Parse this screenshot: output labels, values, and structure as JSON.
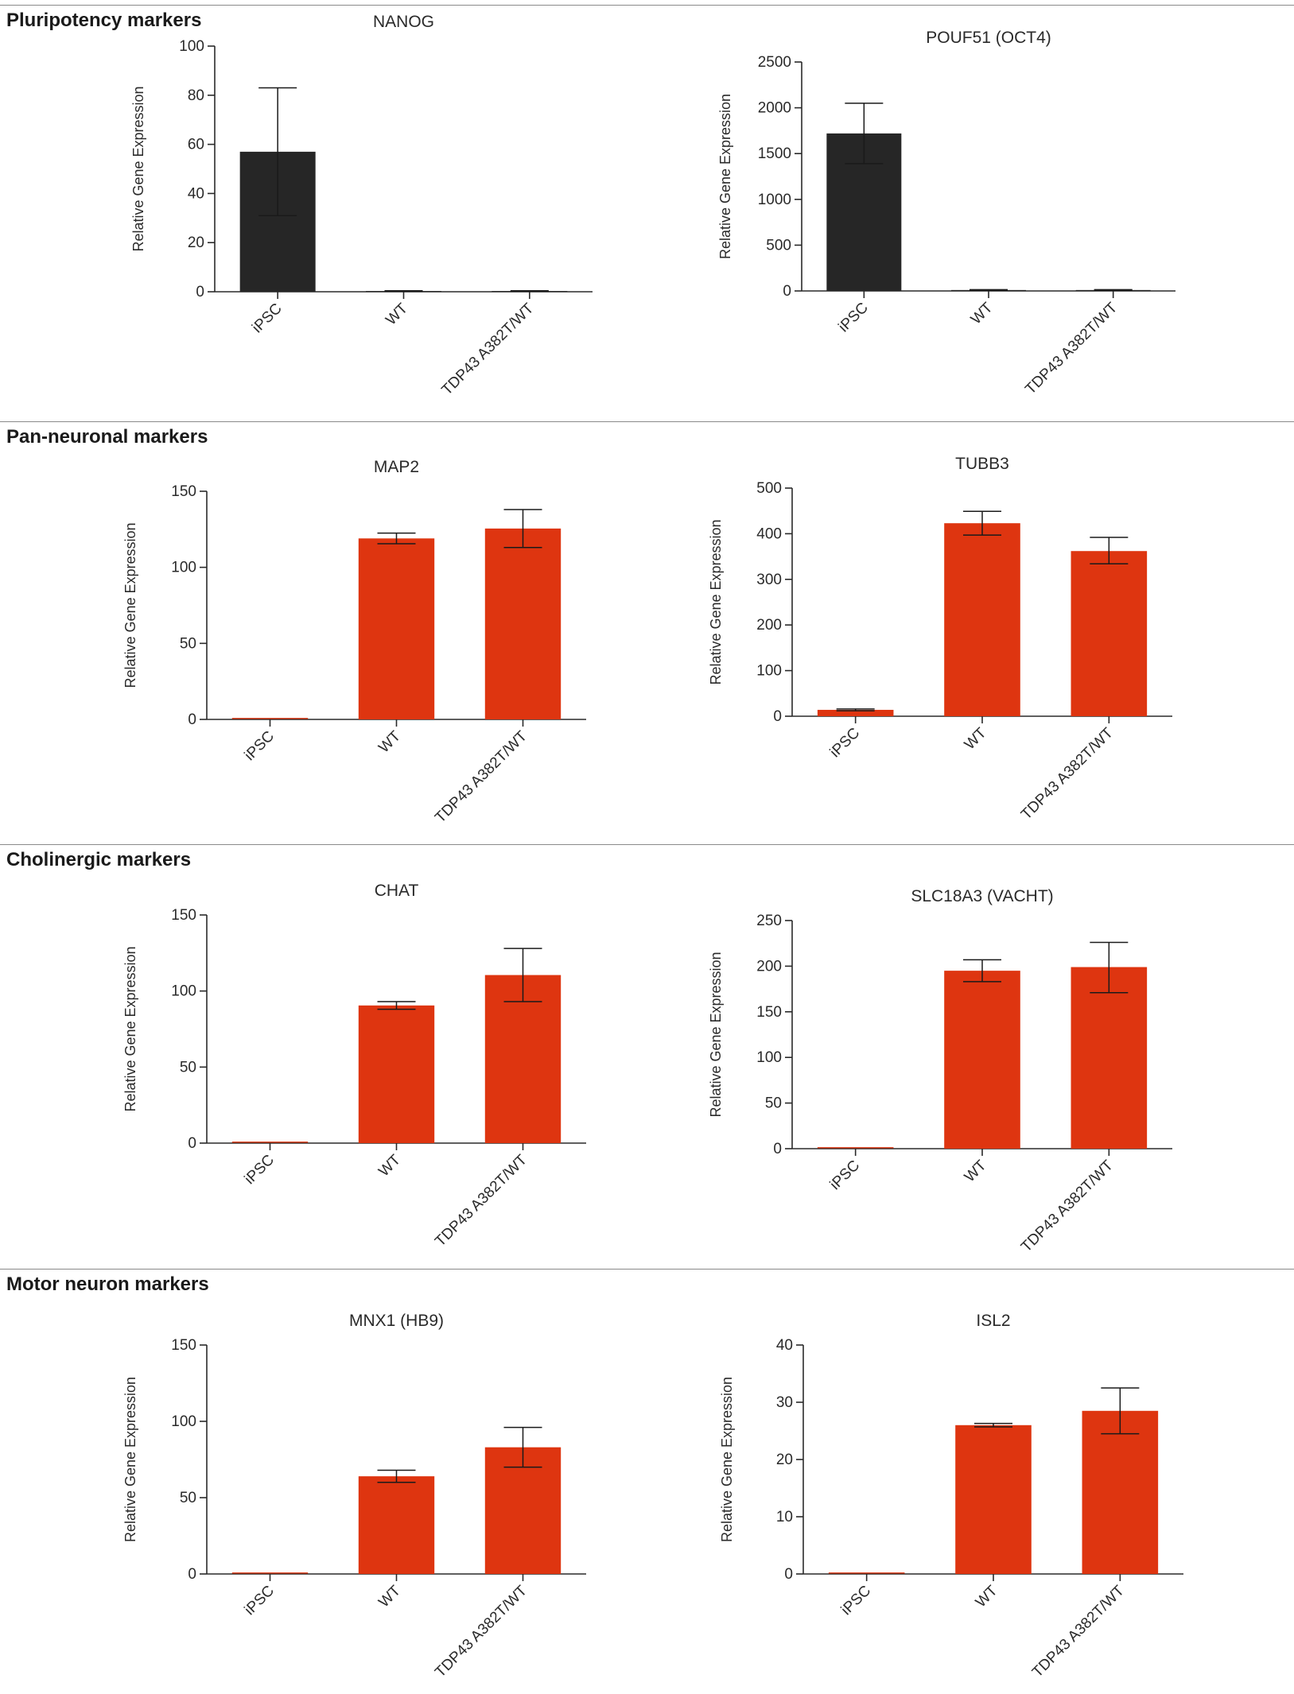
{
  "colors": {
    "dark": "#262626",
    "accent": "#de3510",
    "axis": "#2a2a2a",
    "rule": "#8a8a8a"
  },
  "sections": [
    {
      "title": "Pluripotency markers"
    },
    {
      "title": "Pan-neuronal markers"
    },
    {
      "title": "Cholinergic markers"
    },
    {
      "title": "Motor neuron markers"
    }
  ],
  "chart_data": [
    {
      "type": "bar",
      "title": "NANOG",
      "ylabel": "Relative Gene Expression",
      "xlabel": "",
      "categories": [
        "iPSC",
        "WT",
        "TDP43 A382T/WT"
      ],
      "values": [
        57,
        0.3,
        0.3
      ],
      "error_upper": [
        83,
        0.4,
        0.4
      ],
      "error_lower": [
        31,
        0.2,
        0.2
      ],
      "ylim": [
        0,
        100
      ],
      "yticks": [
        0,
        20,
        40,
        60,
        80,
        100
      ],
      "color": "dark",
      "grid": false
    },
    {
      "type": "bar",
      "title": "POUF51 (OCT4)",
      "ylabel": "Relative Gene Expression",
      "xlabel": "",
      "categories": [
        "iPSC",
        "WT",
        "TDP43 A382T/WT"
      ],
      "values": [
        1720,
        10,
        10
      ],
      "error_upper": [
        2050,
        14,
        14
      ],
      "error_lower": [
        1390,
        6,
        6
      ],
      "ylim": [
        0,
        2500
      ],
      "yticks": [
        0,
        500,
        1000,
        1500,
        2000,
        2500
      ],
      "color": "dark",
      "grid": false
    },
    {
      "type": "bar",
      "title": "MAP2",
      "ylabel": "Relative Gene Expression",
      "xlabel": "",
      "categories": [
        "iPSC",
        "WT",
        "TDP43 A382T/WT"
      ],
      "values": [
        0,
        119,
        125.5
      ],
      "error_upper": [
        0,
        122.5,
        138
      ],
      "error_lower": [
        0,
        115.5,
        113
      ],
      "ylim": [
        0,
        150
      ],
      "yticks": [
        0,
        50,
        100,
        150
      ],
      "color": "accent",
      "grid": false
    },
    {
      "type": "bar",
      "title": "TUBB3",
      "ylabel": "Relative Gene Expression",
      "xlabel": "",
      "categories": [
        "iPSC",
        "WT",
        "TDP43 A382T/WT"
      ],
      "values": [
        14,
        423,
        362
      ],
      "error_upper": [
        16,
        449,
        392
      ],
      "error_lower": [
        12,
        397,
        334
      ],
      "ylim": [
        0,
        500
      ],
      "yticks": [
        0,
        100,
        200,
        300,
        400,
        500
      ],
      "color": "accent",
      "grid": false
    },
    {
      "type": "bar",
      "title": "CHAT",
      "ylabel": "Relative Gene Expression",
      "xlabel": "",
      "categories": [
        "iPSC",
        "WT",
        "TDP43 A382T/WT"
      ],
      "values": [
        0,
        90.5,
        110.5
      ],
      "error_upper": [
        0,
        93,
        128
      ],
      "error_lower": [
        0,
        88,
        93
      ],
      "ylim": [
        0,
        150
      ],
      "yticks": [
        0,
        50,
        100,
        150
      ],
      "color": "accent",
      "grid": false
    },
    {
      "type": "bar",
      "title": "SLC18A3 (VACHT)",
      "ylabel": "Relative Gene Expression",
      "xlabel": "",
      "categories": [
        "iPSC",
        "WT",
        "TDP43 A382T/WT"
      ],
      "values": [
        0,
        195,
        199
      ],
      "error_upper": [
        0,
        207,
        226
      ],
      "error_lower": [
        0,
        183,
        171
      ],
      "ylim": [
        0,
        250
      ],
      "yticks": [
        0,
        50,
        100,
        150,
        200,
        250
      ],
      "color": "accent",
      "grid": false
    },
    {
      "type": "bar",
      "title": "MNX1 (HB9)",
      "ylabel": "Relative Gene Expression",
      "xlabel": "",
      "categories": [
        "iPSC",
        "WT",
        "TDP43 A382T/WT"
      ],
      "values": [
        0,
        64,
        83
      ],
      "error_upper": [
        0,
        68,
        96
      ],
      "error_lower": [
        0,
        60,
        70
      ],
      "ylim": [
        0,
        150
      ],
      "yticks": [
        0,
        50,
        100,
        150
      ],
      "color": "accent",
      "grid": false
    },
    {
      "type": "bar",
      "title": "ISL2",
      "ylabel": "Relative Gene Expression",
      "xlabel": "",
      "categories": [
        "iPSC",
        "WT",
        "TDP43 A382T/WT"
      ],
      "values": [
        0,
        26,
        28.5
      ],
      "error_upper": [
        0,
        26.3,
        32.5
      ],
      "error_lower": [
        0,
        25.7,
        24.5
      ],
      "ylim": [
        0,
        40
      ],
      "yticks": [
        0,
        10,
        20,
        30,
        40
      ],
      "color": "accent",
      "grid": false
    }
  ]
}
